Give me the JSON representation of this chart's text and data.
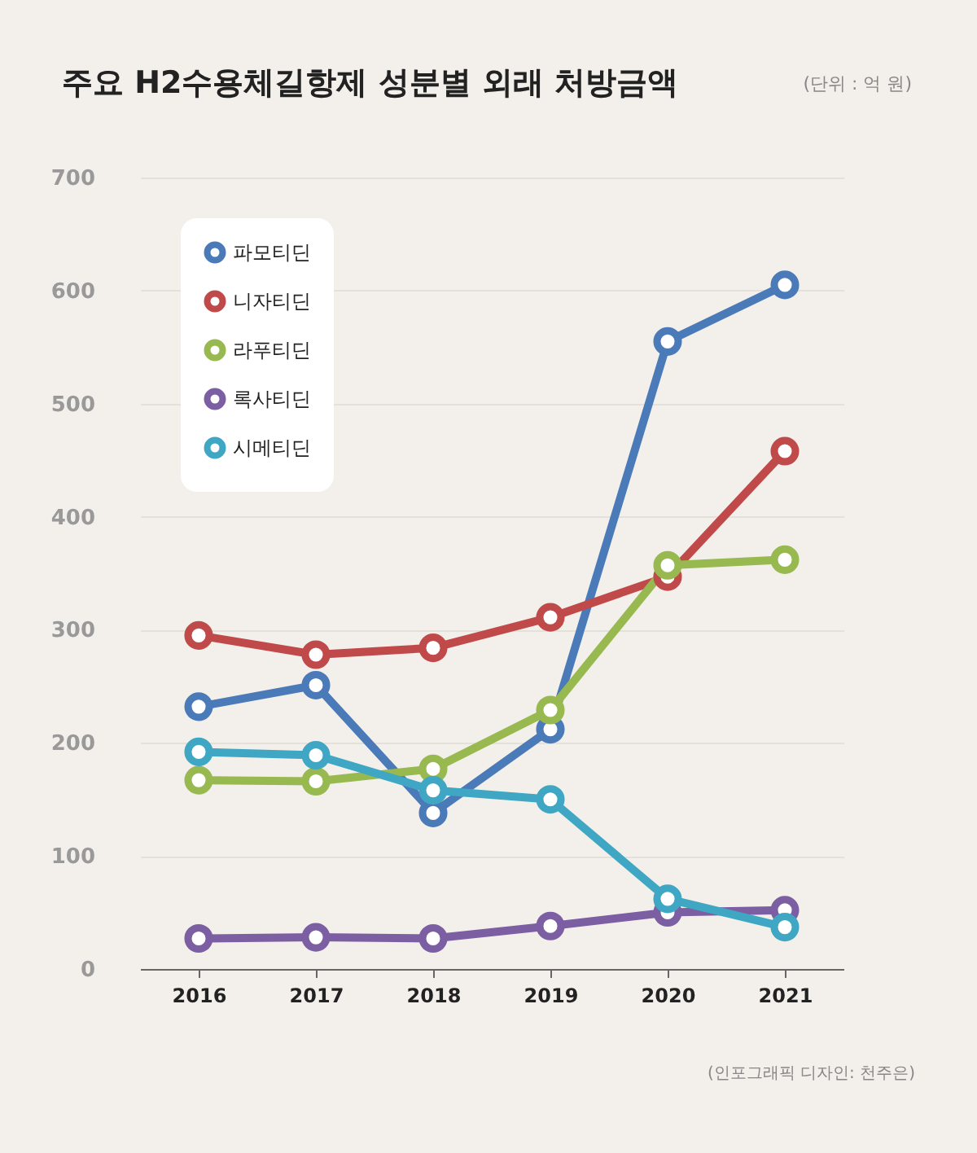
{
  "chart_data": {
    "type": "line",
    "title": "주요 H2수용체길항제 성분별 외래 처방금액",
    "subtitle": "(단위 : 억 원)",
    "annotations": [
      "(인포그래픽 디자인: 천주은)"
    ],
    "categories": [
      "2016",
      "2017",
      "2018",
      "2019",
      "2020",
      "2021"
    ],
    "series": [
      {
        "name": "파모티딘",
        "color": "#4a7ab8",
        "values": [
          232,
          251,
          138,
          212,
          555,
          605
        ]
      },
      {
        "name": "니자티딘",
        "color": "#c0494a",
        "values": [
          295,
          278,
          284,
          311,
          347,
          458
        ]
      },
      {
        "name": "라푸티딘",
        "color": "#97b94f",
        "values": [
          167,
          166,
          177,
          229,
          357,
          362
        ]
      },
      {
        "name": "록사티딘",
        "color": "#7c5ea3",
        "values": [
          27,
          28,
          27,
          38,
          50,
          52
        ]
      },
      {
        "name": "시메티딘",
        "color": "#3fa6c3",
        "values": [
          192,
          189,
          158,
          150,
          62,
          37
        ]
      }
    ],
    "ylim": [
      0,
      700
    ],
    "yticks": [
      0,
      100,
      200,
      300,
      400,
      500,
      600,
      700
    ],
    "grid": "y",
    "legend": "top left",
    "marker": "circle",
    "line_style": "solid"
  }
}
